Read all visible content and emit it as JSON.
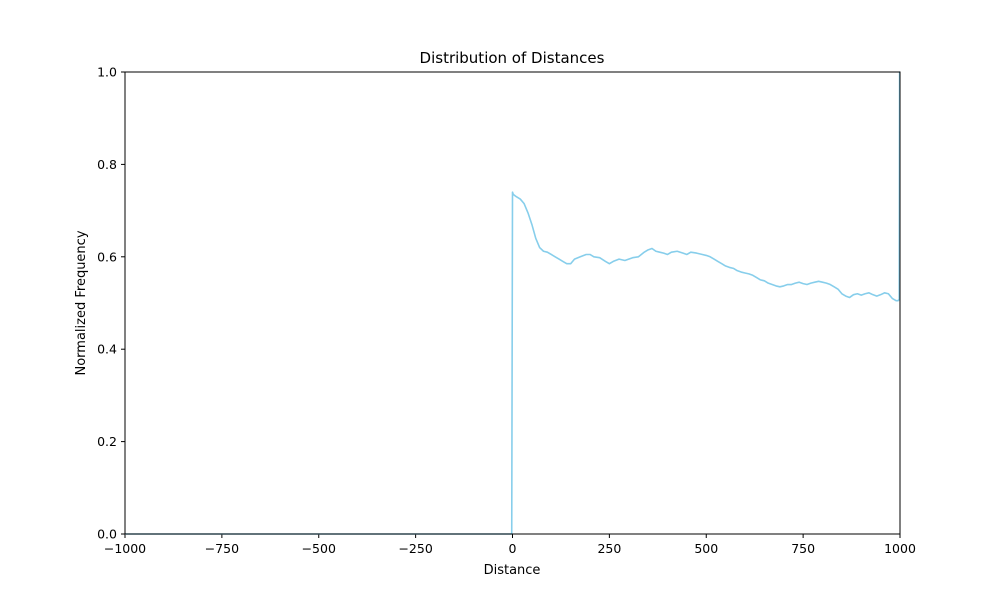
{
  "chart_data": {
    "type": "line",
    "title": "Distribution of Distances",
    "xlabel": "Distance",
    "ylabel": "Normalized Frequency",
    "xlim": [
      -1000,
      1000
    ],
    "ylim": [
      0,
      1
    ],
    "grid": false,
    "x_ticks": [
      -1000,
      -750,
      -500,
      -250,
      0,
      250,
      500,
      750,
      1000
    ],
    "x_tick_labels": [
      "−1000",
      "−750",
      "−500",
      "−250",
      "0",
      "250",
      "500",
      "750",
      "1000"
    ],
    "y_ticks": [
      0,
      0.2,
      0.4,
      0.6,
      0.8,
      1.0
    ],
    "y_tick_labels": [
      "0.0",
      "0.2",
      "0.4",
      "0.6",
      "0.8",
      "1.0"
    ],
    "series": [
      {
        "color": "#87ceeb",
        "x": [
          -1000,
          -2,
          0,
          2,
          10,
          20,
          30,
          40,
          50,
          60,
          70,
          80,
          90,
          100,
          110,
          120,
          130,
          140,
          150,
          160,
          175,
          190,
          200,
          210,
          225,
          240,
          250,
          260,
          275,
          290,
          300,
          310,
          325,
          340,
          350,
          360,
          370,
          380,
          390,
          400,
          410,
          425,
          440,
          450,
          460,
          475,
          490,
          500,
          510,
          520,
          530,
          540,
          550,
          560,
          570,
          580,
          590,
          600,
          610,
          620,
          630,
          640,
          650,
          660,
          670,
          680,
          690,
          700,
          710,
          720,
          730,
          740,
          750,
          760,
          770,
          780,
          790,
          800,
          810,
          820,
          830,
          840,
          850,
          860,
          870,
          880,
          890,
          900,
          910,
          920,
          930,
          940,
          950,
          960,
          970,
          980,
          990,
          995,
          998,
          999,
          1000
        ],
        "y": [
          0,
          0,
          0.74,
          0.735,
          0.73,
          0.725,
          0.715,
          0.695,
          0.67,
          0.64,
          0.62,
          0.612,
          0.61,
          0.605,
          0.6,
          0.595,
          0.59,
          0.585,
          0.585,
          0.595,
          0.6,
          0.605,
          0.605,
          0.6,
          0.598,
          0.59,
          0.585,
          0.59,
          0.595,
          0.592,
          0.595,
          0.598,
          0.6,
          0.61,
          0.615,
          0.618,
          0.612,
          0.61,
          0.608,
          0.605,
          0.61,
          0.612,
          0.608,
          0.605,
          0.61,
          0.608,
          0.605,
          0.603,
          0.6,
          0.595,
          0.59,
          0.585,
          0.58,
          0.577,
          0.575,
          0.57,
          0.567,
          0.565,
          0.563,
          0.56,
          0.555,
          0.55,
          0.548,
          0.543,
          0.54,
          0.537,
          0.535,
          0.537,
          0.54,
          0.54,
          0.543,
          0.545,
          0.542,
          0.54,
          0.543,
          0.545,
          0.547,
          0.545,
          0.543,
          0.54,
          0.535,
          0.53,
          0.52,
          0.515,
          0.512,
          0.518,
          0.52,
          0.517,
          0.52,
          0.522,
          0.518,
          0.515,
          0.518,
          0.522,
          0.52,
          0.51,
          0.505,
          0.505,
          0.508,
          1.0,
          1.0
        ]
      }
    ]
  }
}
